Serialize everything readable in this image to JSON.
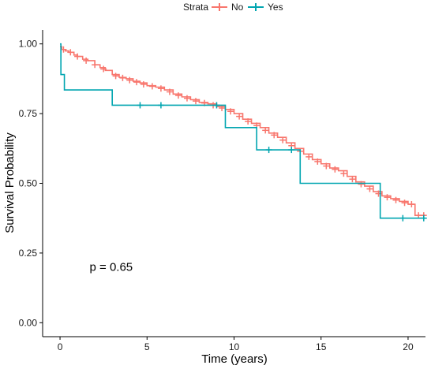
{
  "chart_data": {
    "type": "line",
    "step": true,
    "xlabel": "Time (years)",
    "ylabel": "Survival Probability",
    "xlim": [
      -1,
      21
    ],
    "ylim": [
      -0.05,
      1.05
    ],
    "xticks": [
      0,
      5,
      10,
      15,
      20
    ],
    "yticks": [
      0.0,
      0.25,
      0.5,
      0.75,
      1.0
    ],
    "xtick_labels": [
      "0",
      "5",
      "10",
      "15",
      "20"
    ],
    "ytick_labels": [
      "0.00",
      "0.25",
      "0.50",
      "0.75",
      "1.00"
    ],
    "grid": false,
    "legend": {
      "position": "top",
      "title": "Strata"
    },
    "annotation": {
      "text": "p = 0.65",
      "x": 1.7,
      "y": 0.2
    },
    "series": [
      {
        "name": "No",
        "color": "#F8766D",
        "steps": [
          [
            0,
            0.99
          ],
          [
            0.1,
            0.98
          ],
          [
            0.3,
            0.975
          ],
          [
            0.5,
            0.97
          ],
          [
            0.8,
            0.96
          ],
          [
            1.0,
            0.955
          ],
          [
            1.3,
            0.945
          ],
          [
            1.6,
            0.94
          ],
          [
            2.0,
            0.925
          ],
          [
            2.3,
            0.915
          ],
          [
            2.6,
            0.905
          ],
          [
            3.0,
            0.89
          ],
          [
            3.4,
            0.88
          ],
          [
            3.8,
            0.875
          ],
          [
            4.2,
            0.866
          ],
          [
            4.6,
            0.86
          ],
          [
            5.0,
            0.85
          ],
          [
            5.5,
            0.845
          ],
          [
            6.0,
            0.835
          ],
          [
            6.5,
            0.82
          ],
          [
            7.0,
            0.81
          ],
          [
            7.5,
            0.8
          ],
          [
            8.0,
            0.79
          ],
          [
            8.5,
            0.785
          ],
          [
            9.0,
            0.775
          ],
          [
            9.5,
            0.765
          ],
          [
            10.0,
            0.75
          ],
          [
            10.5,
            0.73
          ],
          [
            11.0,
            0.715
          ],
          [
            11.5,
            0.7
          ],
          [
            12.0,
            0.68
          ],
          [
            12.5,
            0.665
          ],
          [
            13.0,
            0.645
          ],
          [
            13.5,
            0.625
          ],
          [
            14.0,
            0.605
          ],
          [
            14.5,
            0.585
          ],
          [
            15.0,
            0.57
          ],
          [
            15.5,
            0.555
          ],
          [
            16.0,
            0.545
          ],
          [
            16.5,
            0.525
          ],
          [
            17.0,
            0.505
          ],
          [
            17.5,
            0.49
          ],
          [
            18.0,
            0.47
          ],
          [
            18.5,
            0.455
          ],
          [
            19.0,
            0.445
          ],
          [
            19.5,
            0.435
          ],
          [
            20.0,
            0.425
          ],
          [
            20.4,
            0.385
          ],
          [
            21.0,
            0.385
          ]
        ],
        "censors": [
          [
            0.2,
            0.98
          ],
          [
            0.6,
            0.97
          ],
          [
            1.0,
            0.955
          ],
          [
            1.5,
            0.94
          ],
          [
            2.0,
            0.925
          ],
          [
            2.5,
            0.91
          ],
          [
            3.2,
            0.885
          ],
          [
            3.6,
            0.878
          ],
          [
            4.0,
            0.87
          ],
          [
            4.4,
            0.863
          ],
          [
            4.8,
            0.855
          ],
          [
            5.3,
            0.848
          ],
          [
            5.8,
            0.84
          ],
          [
            6.3,
            0.828
          ],
          [
            6.8,
            0.815
          ],
          [
            7.3,
            0.805
          ],
          [
            7.8,
            0.795
          ],
          [
            8.3,
            0.788
          ],
          [
            8.8,
            0.78
          ],
          [
            9.3,
            0.77
          ],
          [
            9.8,
            0.758
          ],
          [
            10.3,
            0.74
          ],
          [
            10.8,
            0.722
          ],
          [
            11.3,
            0.707
          ],
          [
            11.8,
            0.69
          ],
          [
            12.3,
            0.673
          ],
          [
            12.8,
            0.655
          ],
          [
            13.3,
            0.635
          ],
          [
            13.8,
            0.615
          ],
          [
            14.3,
            0.595
          ],
          [
            14.8,
            0.578
          ],
          [
            15.3,
            0.562
          ],
          [
            15.8,
            0.55
          ],
          [
            16.3,
            0.535
          ],
          [
            16.8,
            0.515
          ],
          [
            17.3,
            0.497
          ],
          [
            17.8,
            0.48
          ],
          [
            18.3,
            0.463
          ],
          [
            18.8,
            0.45
          ],
          [
            19.3,
            0.44
          ],
          [
            19.8,
            0.43
          ],
          [
            20.2,
            0.425
          ],
          [
            20.6,
            0.385
          ],
          [
            20.9,
            0.385
          ]
        ]
      },
      {
        "name": "Yes",
        "color": "#00A5B0",
        "steps": [
          [
            0,
            1.0
          ],
          [
            0.05,
            0.89
          ],
          [
            0.25,
            0.835
          ],
          [
            3.0,
            0.78
          ],
          [
            9.5,
            0.7
          ],
          [
            11.3,
            0.62
          ],
          [
            13.8,
            0.5
          ],
          [
            18.4,
            0.375
          ],
          [
            21.0,
            0.375
          ]
        ],
        "censors": [
          [
            4.6,
            0.78
          ],
          [
            5.8,
            0.78
          ],
          [
            9.0,
            0.78
          ],
          [
            12.0,
            0.62
          ],
          [
            13.3,
            0.62
          ],
          [
            19.7,
            0.375
          ],
          [
            20.9,
            0.375
          ]
        ]
      }
    ]
  }
}
